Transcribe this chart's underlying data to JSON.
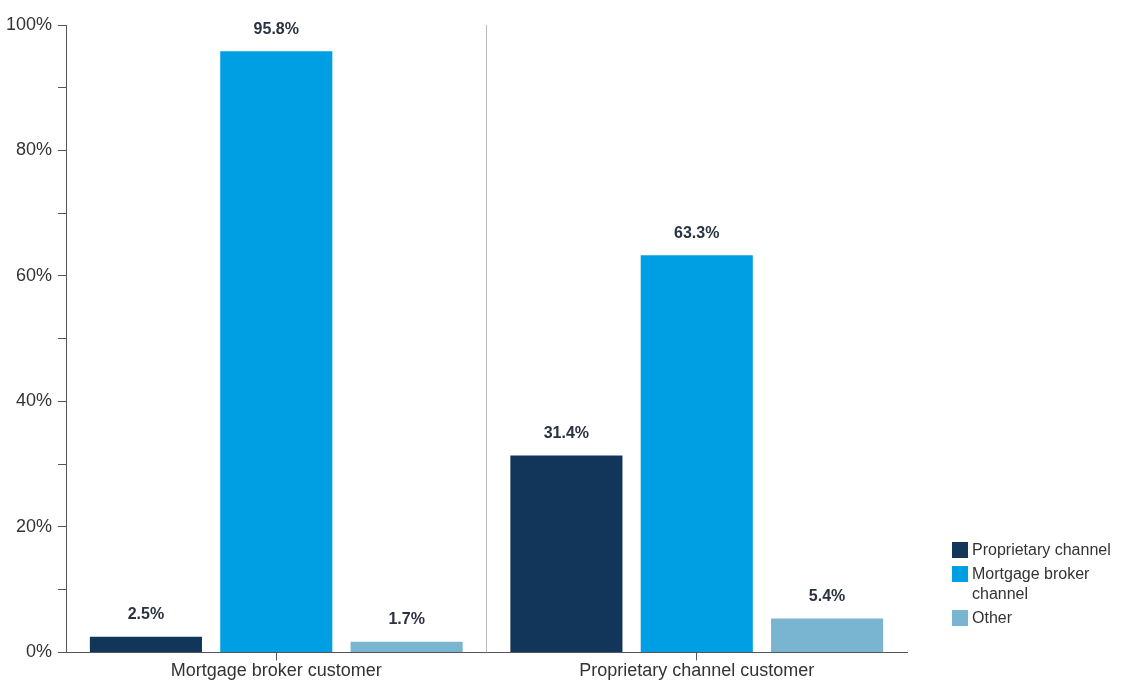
{
  "chart_data": {
    "type": "bar",
    "categories": [
      "Mortgage broker customer",
      "Proprietary channel customer"
    ],
    "series": [
      {
        "name": "Proprietary channel",
        "color": "#12365a",
        "values": [
          2.5,
          31.4
        ]
      },
      {
        "name": "Mortgage broker channel",
        "color": "#009fe3",
        "values": [
          95.8,
          63.3
        ]
      },
      {
        "name": "Other",
        "color": "#79b4d0",
        "values": [
          1.7,
          5.4
        ]
      }
    ],
    "value_labels": [
      [
        "2.5%",
        "31.4%"
      ],
      [
        "95.8%",
        "63.3%"
      ],
      [
        "1.7%",
        "5.4%"
      ]
    ],
    "ylim": [
      0,
      100
    ],
    "yticks": [
      {
        "value": 0,
        "label": "0%"
      },
      {
        "value": 10,
        "label": null
      },
      {
        "value": 20,
        "label": "20%"
      },
      {
        "value": 30,
        "label": null
      },
      {
        "value": 40,
        "label": "40%"
      },
      {
        "value": 50,
        "label": null
      },
      {
        "value": 60,
        "label": "60%"
      },
      {
        "value": 70,
        "label": null
      },
      {
        "value": 80,
        "label": "80%"
      },
      {
        "value": 90,
        "label": null
      },
      {
        "value": 100,
        "label": "100%"
      }
    ],
    "grid": false,
    "legend": "bottom right"
  }
}
